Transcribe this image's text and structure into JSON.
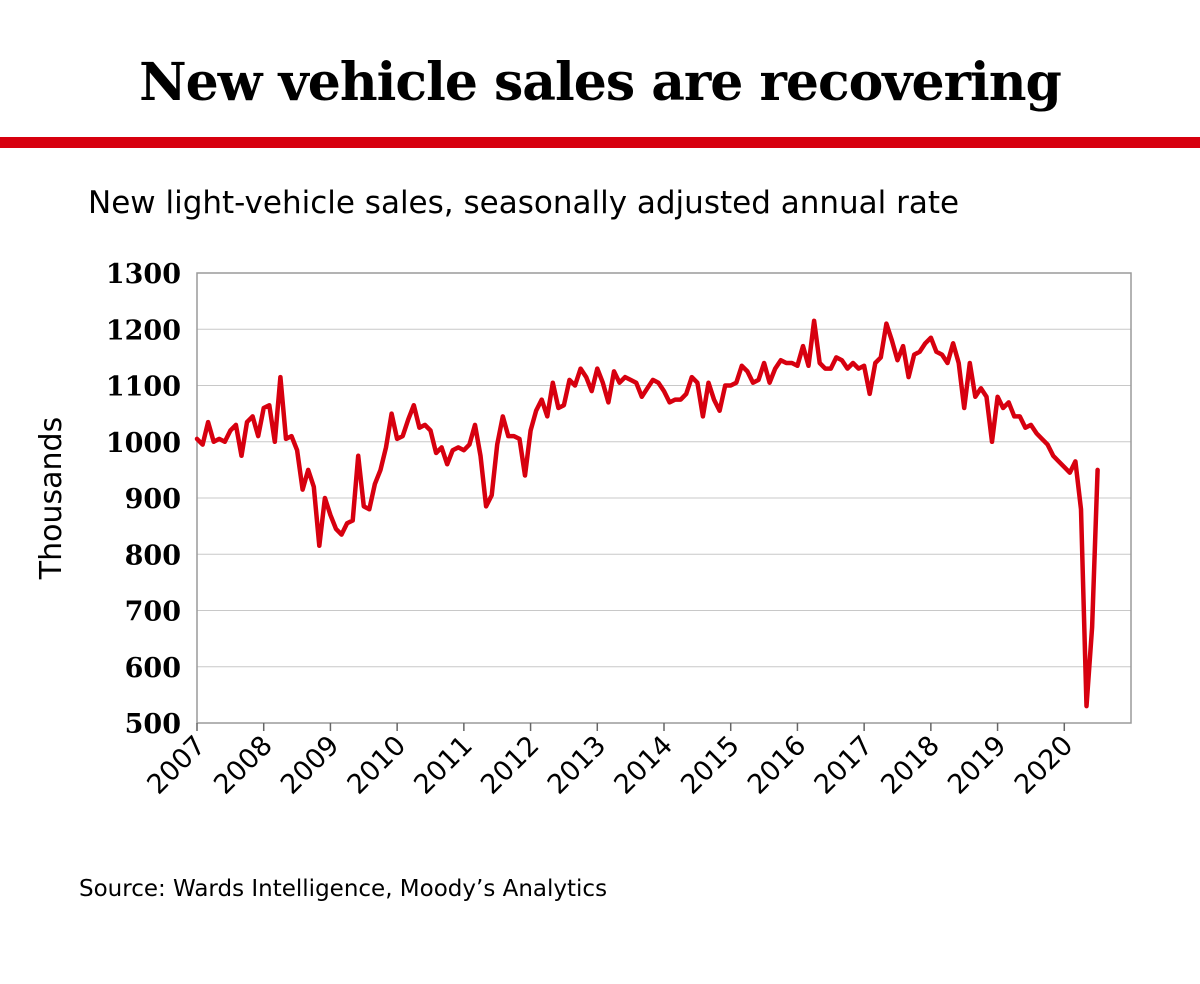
{
  "header": {
    "title": "New vehicle sales are recovering",
    "subtitle": "New light-vehicle sales, seasonally adjusted annual rate",
    "source": "Source: Wards Intelligence, Moody’s Analytics"
  },
  "colors": {
    "accent": "#d7000f",
    "line": "#d7000f",
    "grid": "#c8c8c8"
  },
  "chart_data": {
    "type": "line",
    "ylabel": "Thousands",
    "ylim": [
      500,
      1300
    ],
    "yticks": [
      500,
      600,
      700,
      800,
      900,
      1000,
      1100,
      1200,
      1300
    ],
    "x_tick_labels": [
      "2007",
      "2008",
      "2009",
      "2010",
      "2011",
      "2012",
      "2013",
      "2014",
      "2015",
      "2016",
      "2017",
      "2018",
      "2019",
      "2020"
    ],
    "grid": "horizontal",
    "x_start": "2007-01",
    "series": [
      {
        "name": "",
        "color": "#d7000f",
        "values": [
          1005,
          995,
          1035,
          1000,
          1005,
          1000,
          1020,
          1030,
          975,
          1035,
          1045,
          1010,
          1060,
          1065,
          1000,
          1115,
          1005,
          1010,
          985,
          915,
          950,
          920,
          815,
          900,
          870,
          845,
          835,
          855,
          860,
          975,
          885,
          880,
          925,
          950,
          990,
          1050,
          1005,
          1010,
          1040,
          1065,
          1025,
          1030,
          1020,
          980,
          990,
          960,
          985,
          990,
          985,
          995,
          1030,
          975,
          885,
          905,
          995,
          1045,
          1010,
          1010,
          1005,
          940,
          1020,
          1055,
          1075,
          1045,
          1105,
          1060,
          1065,
          1110,
          1100,
          1130,
          1115,
          1090,
          1130,
          1105,
          1070,
          1125,
          1105,
          1115,
          1110,
          1105,
          1080,
          1095,
          1110,
          1105,
          1090,
          1070,
          1075,
          1075,
          1085,
          1115,
          1105,
          1045,
          1105,
          1075,
          1055,
          1100,
          1100,
          1105,
          1135,
          1125,
          1105,
          1110,
          1140,
          1105,
          1130,
          1145,
          1140,
          1140,
          1135,
          1170,
          1135,
          1215,
          1140,
          1130,
          1130,
          1150,
          1145,
          1130,
          1140,
          1130,
          1135,
          1085,
          1140,
          1150,
          1210,
          1180,
          1145,
          1170,
          1115,
          1155,
          1160,
          1175,
          1185,
          1160,
          1155,
          1140,
          1175,
          1140,
          1060,
          1140,
          1080,
          1095,
          1080,
          1000,
          1080,
          1060,
          1070,
          1045,
          1045,
          1025,
          1030,
          1015,
          1005,
          995,
          975,
          965,
          955,
          945,
          965,
          880,
          530,
          670,
          950
        ]
      }
    ]
  }
}
